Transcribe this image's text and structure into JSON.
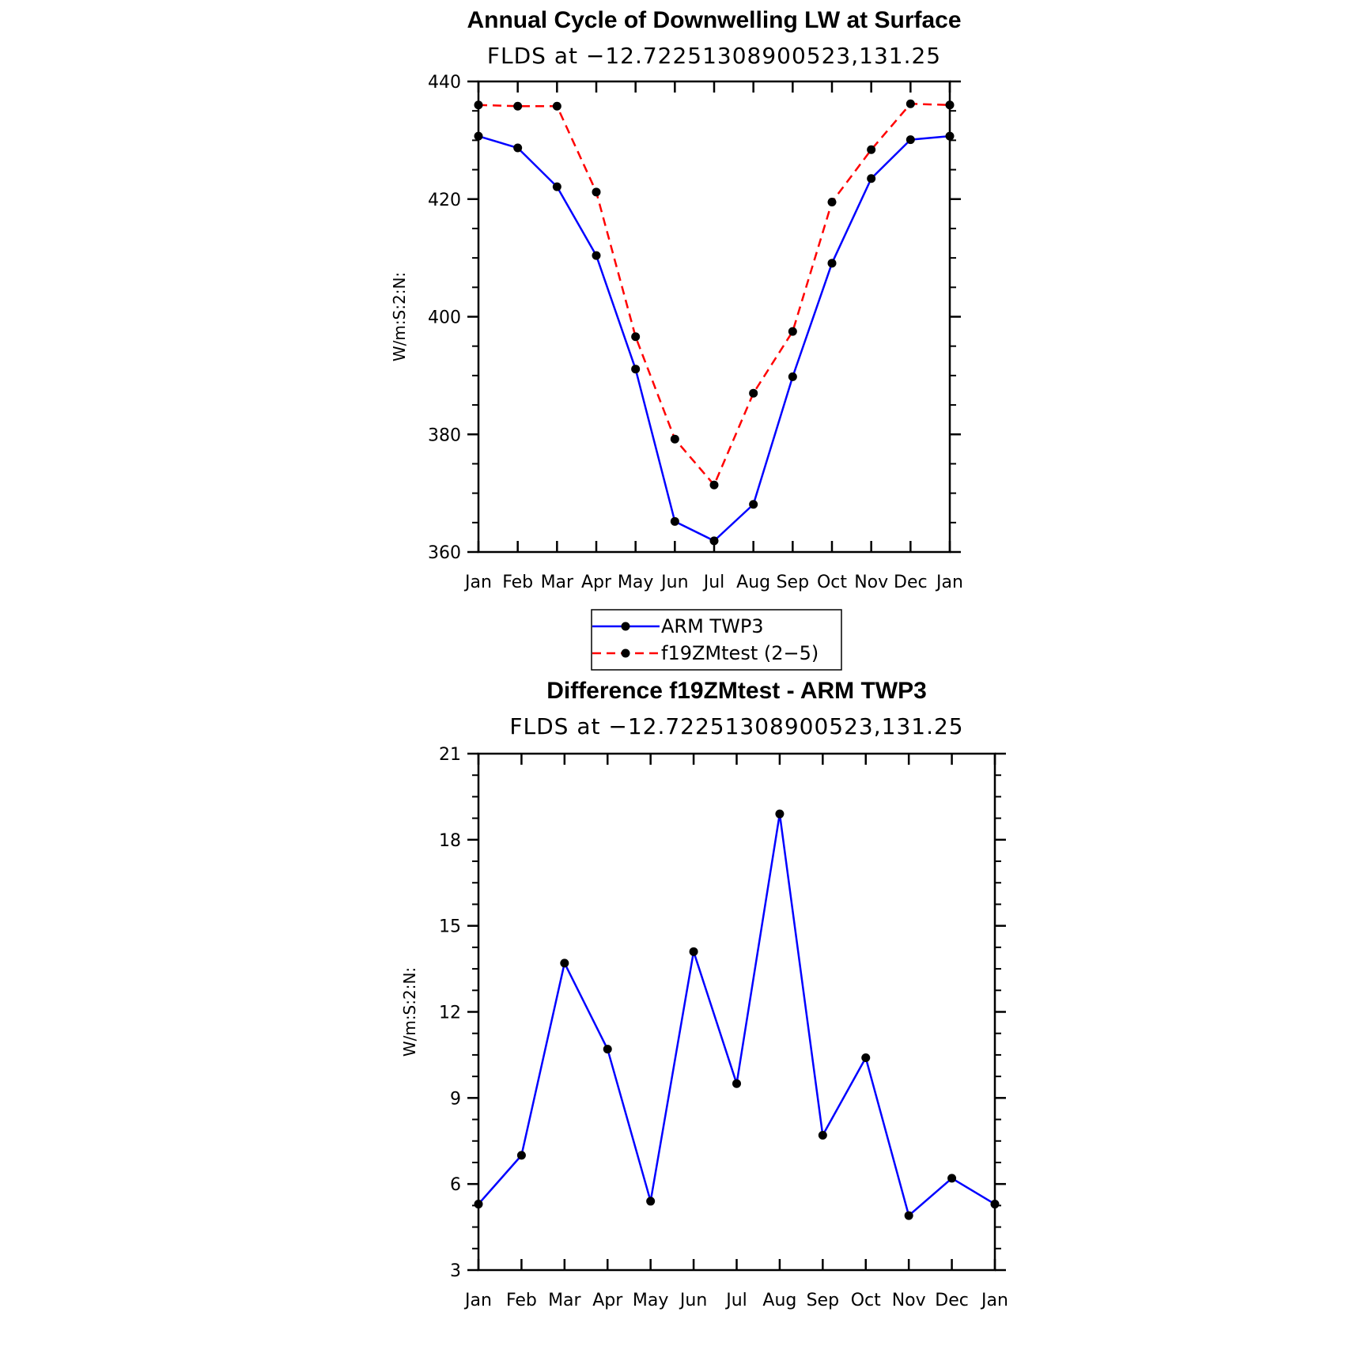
{
  "chart_data": [
    {
      "type": "line",
      "title": "Annual Cycle of Downwelling LW at Surface",
      "subtitle": "FLDS at −12.72251308900523,131.25",
      "ylabel": "W/m:S:2:N:",
      "xlabel": "",
      "categories": [
        "Jan",
        "Feb",
        "Mar",
        "Apr",
        "May",
        "Jun",
        "Jul",
        "Aug",
        "Sep",
        "Oct",
        "Nov",
        "Dec",
        "Jan"
      ],
      "ylim": [
        360,
        440
      ],
      "yticks": [
        360,
        380,
        400,
        420,
        440
      ],
      "ytick_labels": [
        "360",
        "380",
        "400",
        "420",
        "440"
      ],
      "series": [
        {
          "name": "ARM TWP3",
          "color": "#0000ff",
          "dashed": false,
          "values": [
            430.7,
            428.7,
            422.1,
            410.4,
            391.1,
            365.2,
            361.9,
            368.1,
            389.8,
            409.1,
            423.5,
            430.1,
            430.7
          ]
        },
        {
          "name": "f19ZMtest (2−5)",
          "color": "#ff0000",
          "dashed": true,
          "values": [
            436.0,
            435.8,
            435.8,
            421.2,
            396.6,
            379.2,
            371.4,
            387.0,
            397.5,
            419.5,
            428.4,
            436.2,
            436.0
          ]
        }
      ],
      "legend": {
        "placement": "bottom-center",
        "entries": [
          "ARM TWP3",
          "f19ZMtest (2−5)"
        ]
      }
    },
    {
      "type": "line",
      "title": "Difference f19ZMtest - ARM TWP3",
      "subtitle": "FLDS at −12.72251308900523,131.25",
      "ylabel": "W/m:S:2:N:",
      "xlabel": "",
      "categories": [
        "Jan",
        "Feb",
        "Mar",
        "Apr",
        "May",
        "Jun",
        "Jul",
        "Aug",
        "Sep",
        "Oct",
        "Nov",
        "Dec",
        "Jan"
      ],
      "ylim": [
        3,
        21
      ],
      "yticks": [
        3,
        6,
        9,
        12,
        15,
        18,
        21
      ],
      "ytick_labels": [
        "3",
        "6",
        "9",
        "12",
        "15",
        "18",
        "21"
      ],
      "series": [
        {
          "name": "Difference",
          "color": "#0000ff",
          "dashed": false,
          "values": [
            5.3,
            7.0,
            13.7,
            10.7,
            5.4,
            14.1,
            9.5,
            18.9,
            7.7,
            10.4,
            4.9,
            6.2,
            5.3
          ]
        }
      ]
    }
  ]
}
